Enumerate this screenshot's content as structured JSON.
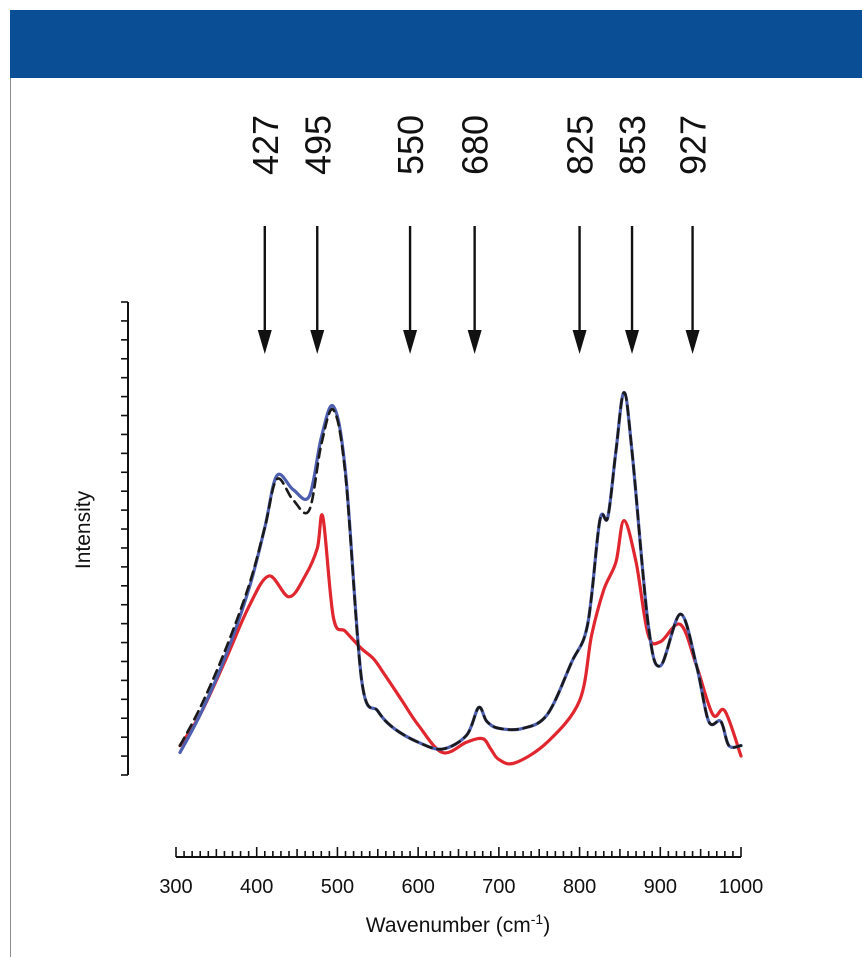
{
  "chart_data": {
    "type": "line",
    "title": "",
    "xlabel": "Wavenumber (cm-1)",
    "ylabel": "Intensity",
    "xlim": [
      300,
      1000
    ],
    "ylim": [
      0,
      1.3
    ],
    "x_ticks": [
      300,
      400,
      500,
      600,
      700,
      800,
      900,
      1000
    ],
    "x_tick_labels": [
      "300",
      "400",
      "500",
      "600",
      "700",
      "800",
      "900",
      "1000"
    ],
    "peak_markers": [
      {
        "label": "427",
        "x": 410
      },
      {
        "label": "495",
        "x": 475
      },
      {
        "label": "550",
        "x": 590
      },
      {
        "label": "680",
        "x": 670
      },
      {
        "label": "825",
        "x": 800
      },
      {
        "label": "853",
        "x": 865
      },
      {
        "label": "927",
        "x": 940
      }
    ],
    "series": [
      {
        "color": "#e0262e",
        "style": "solid",
        "x": [
          305,
          330,
          360,
          390,
          415,
          440,
          460,
          475,
          482,
          495,
          510,
          530,
          545,
          560,
          580,
          600,
          630,
          660,
          680,
          690,
          700,
          720,
          760,
          800,
          815,
          830,
          845,
          855,
          870,
          885,
          900,
          925,
          945,
          965,
          980,
          1000
        ],
        "y": [
          0.03,
          0.12,
          0.27,
          0.43,
          0.52,
          0.46,
          0.52,
          0.6,
          0.69,
          0.4,
          0.36,
          0.31,
          0.28,
          0.23,
          0.16,
          0.09,
          0.01,
          0.04,
          0.05,
          0.02,
          -0.01,
          -0.02,
          0.04,
          0.16,
          0.35,
          0.48,
          0.56,
          0.68,
          0.56,
          0.35,
          0.33,
          0.38,
          0.26,
          0.12,
          0.13,
          0.0
        ]
      },
      {
        "color": "#4f5fb0",
        "style": "solid",
        "x": [
          305,
          330,
          360,
          390,
          410,
          425,
          445,
          465,
          480,
          495,
          510,
          530,
          550,
          570,
          600,
          630,
          660,
          675,
          685,
          700,
          730,
          760,
          790,
          810,
          825,
          835,
          845,
          855,
          865,
          885,
          900,
          925,
          945,
          960,
          975,
          985,
          1000
        ],
        "y": [
          0.01,
          0.12,
          0.28,
          0.48,
          0.66,
          0.81,
          0.77,
          0.75,
          0.92,
          1.01,
          0.82,
          0.22,
          0.13,
          0.08,
          0.04,
          0.02,
          0.06,
          0.14,
          0.1,
          0.08,
          0.08,
          0.12,
          0.27,
          0.38,
          0.68,
          0.69,
          0.88,
          1.05,
          0.88,
          0.38,
          0.26,
          0.41,
          0.26,
          0.1,
          0.1,
          0.03,
          0.03
        ]
      },
      {
        "color": "#1a1a1a",
        "style": "dashed",
        "x": [
          305,
          330,
          360,
          390,
          410,
          425,
          445,
          465,
          480,
          495,
          510,
          530,
          550,
          570,
          600,
          630,
          660,
          675,
          685,
          700,
          730,
          760,
          790,
          810,
          825,
          835,
          845,
          855,
          865,
          885,
          900,
          925,
          945,
          960,
          975,
          985,
          1000
        ],
        "y": [
          0.03,
          0.14,
          0.3,
          0.49,
          0.66,
          0.8,
          0.74,
          0.71,
          0.9,
          1.0,
          0.81,
          0.22,
          0.13,
          0.08,
          0.04,
          0.02,
          0.06,
          0.14,
          0.1,
          0.08,
          0.08,
          0.12,
          0.27,
          0.38,
          0.68,
          0.69,
          0.88,
          1.05,
          0.88,
          0.38,
          0.26,
          0.41,
          0.26,
          0.1,
          0.1,
          0.03,
          0.03
        ]
      }
    ]
  }
}
